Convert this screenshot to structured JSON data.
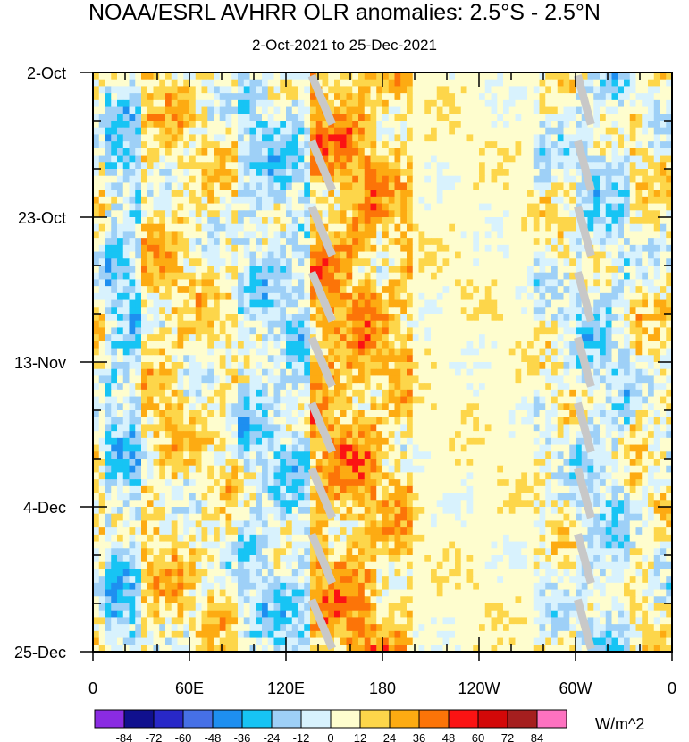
{
  "chart_data": {
    "type": "heatmap",
    "title": "NOAA/ESRL AVHRR OLR anomalies: 2.5°S - 2.5°N",
    "subtitle": "2-Oct-2021 to 25-Dec-2021",
    "xlabel": "",
    "ylabel": "",
    "x_tick_labels": [
      "0",
      "60E",
      "120E",
      "180",
      "120W",
      "60W",
      "0"
    ],
    "x_tick_lons": [
      0,
      60,
      120,
      180,
      240,
      300,
      360
    ],
    "y_tick_labels": [
      "2-Oct",
      "23-Oct",
      "13-Nov",
      "4-Dec",
      "25-Dec"
    ],
    "y_tick_days": [
      0,
      21,
      42,
      63,
      84
    ],
    "x_range_deg": [
      0,
      360
    ],
    "y_range_days": [
      0,
      84
    ],
    "colorbar": {
      "unit_label": "W/m^2",
      "tick_labels": [
        "-84",
        "-72",
        "-60",
        "-48",
        "-36",
        "-24",
        "-12",
        "0",
        "12",
        "24",
        "36",
        "48",
        "60",
        "72",
        "84"
      ],
      "levels": [
        -84,
        -72,
        -60,
        -48,
        -36,
        -24,
        -12,
        0,
        12,
        24,
        36,
        48,
        60,
        72,
        84
      ],
      "colors": [
        "#8a2be2",
        "#10108e",
        "#2828c8",
        "#4670e6",
        "#1e8ff0",
        "#17c4f4",
        "#9ed0f7",
        "#d8f2fd",
        "#fefdce",
        "#fdd64a",
        "#fdab12",
        "#fc7408",
        "#fb1313",
        "#d30808",
        "#a51f1f",
        "#fd72c0"
      ]
    },
    "zonal_bands": [
      {
        "region": "0-8E",
        "mean_anomaly": 6
      },
      {
        "region": "8-30E",
        "mean_anomaly": -14
      },
      {
        "region": "30-55E",
        "mean_anomaly": 14
      },
      {
        "region": "55-90E",
        "mean_anomaly": 8
      },
      {
        "region": "90-135E",
        "mean_anomaly": -10
      },
      {
        "region": "135-175E",
        "mean_anomaly": 26
      },
      {
        "region": "175-200E",
        "mean_anomaly": 18
      },
      {
        "region": "200-275E",
        "mean_anomaly": 6
      },
      {
        "region": "275-300E",
        "mean_anomaly": 2
      },
      {
        "region": "300-335E",
        "mean_anomaly": -8
      },
      {
        "region": "335-360E",
        "mean_anomaly": 6
      }
    ],
    "missing_data_color": "#c8c8c8"
  }
}
